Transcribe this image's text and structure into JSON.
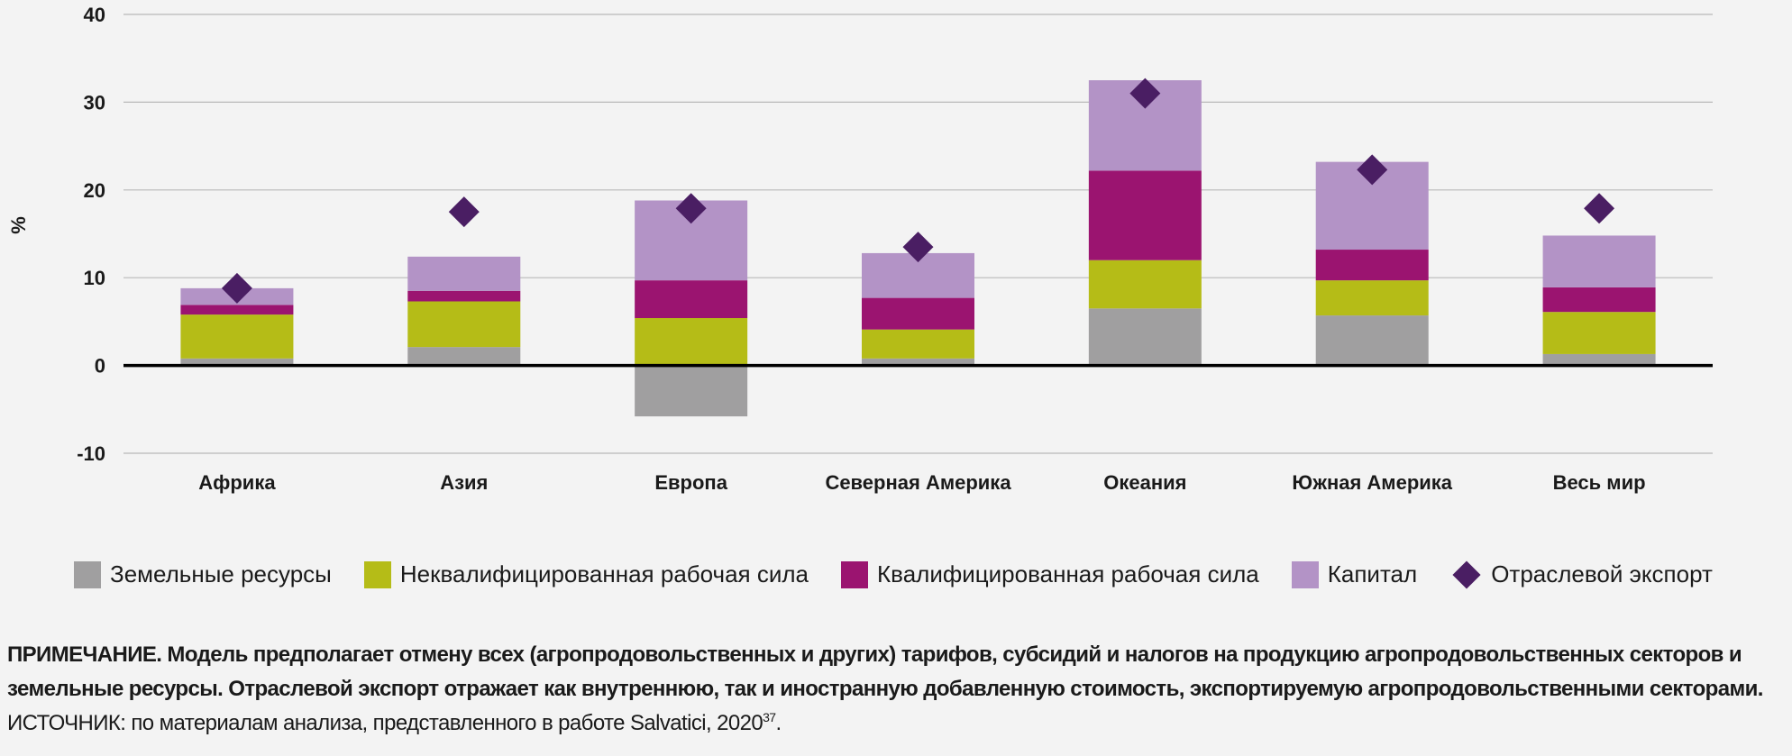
{
  "chart_data": {
    "type": "bar",
    "stacked": true,
    "ylabel": "%",
    "ylim": [
      -10,
      40
    ],
    "yticks": [
      -10,
      0,
      10,
      20,
      30,
      40
    ],
    "grid": true,
    "legend_position": "bottom",
    "categories": [
      "Африка",
      "Азия",
      "Европа",
      "Северная Америка",
      "Океания",
      "Южная Америка",
      "Весь мир"
    ],
    "series": [
      {
        "name": "Земельные ресурсы",
        "color": "#a09fa0",
        "values": [
          0.8,
          2.1,
          -5.8,
          0.8,
          6.5,
          5.7,
          1.3
        ]
      },
      {
        "name": "Неквалифицированная рабочая сила",
        "color": "#b5bc17",
        "values": [
          5.0,
          5.2,
          5.4,
          3.3,
          5.5,
          4.0,
          4.8
        ]
      },
      {
        "name": "Квалифицированная рабочая сила",
        "color": "#9b1470",
        "values": [
          1.1,
          1.2,
          4.3,
          3.6,
          10.2,
          3.5,
          2.8
        ]
      },
      {
        "name": "Капитал",
        "color": "#b393c6",
        "values": [
          1.9,
          3.9,
          9.1,
          5.1,
          10.3,
          10.0,
          5.9
        ]
      }
    ],
    "markers": {
      "name": "Отраслевой экспорт",
      "color": "#4a1e63",
      "values": [
        8.8,
        17.5,
        17.9,
        13.5,
        31.0,
        22.3,
        17.9
      ]
    }
  },
  "notes": {
    "note_text": "ПРИМЕЧАНИЕ. Модель предполагает отмену всех (агропродовольственных и других) тарифов, субсидий и налогов на продукцию агропродовольственных секторов и земельные ресурсы. Отраслевой экспорт отражает как внутреннюю, так и иностранную добавленную стоимость, экспортируемую агропродовольственными секторами.",
    "source_text": "ИСТОЧНИК: по материалам анализа, представленного в работе Salvatici, 2020",
    "source_ref": "37",
    "source_end": "."
  }
}
